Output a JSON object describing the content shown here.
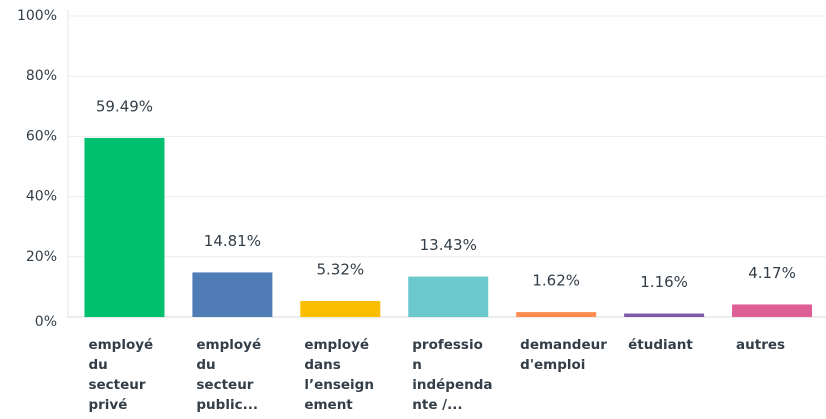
{
  "chart_data": {
    "type": "bar",
    "categories": [
      [
        "employé",
        "du",
        "secteur",
        "privé"
      ],
      [
        "employé",
        "du",
        "secteur",
        "public..."
      ],
      [
        "employé",
        "dans",
        "l’enseign",
        "ement"
      ],
      [
        "professio",
        "n",
        "indépenda",
        "nte /..."
      ],
      [
        "demandeur",
        "d'emploi"
      ],
      [
        "étudiant"
      ],
      [
        "autres"
      ]
    ],
    "values": [
      59.49,
      14.81,
      5.32,
      13.43,
      1.62,
      1.16,
      4.17
    ],
    "value_labels": [
      "59.49%",
      "14.81%",
      "5.32%",
      "13.43%",
      "1.62%",
      "1.16%",
      "4.17%"
    ],
    "colors": [
      "#00bf6f",
      "#507cb6",
      "#f9be00",
      "#6bc8cd",
      "#ff8b4f",
      "#7d5ba6",
      "#de5f96"
    ],
    "ylim": [
      0,
      100
    ],
    "yticks": [
      {
        "value": 0,
        "label": "0%"
      },
      {
        "value": 20,
        "label": "20%"
      },
      {
        "value": 40,
        "label": "40%"
      },
      {
        "value": 60,
        "label": "60%"
      },
      {
        "value": 80,
        "label": "80%"
      },
      {
        "value": 100,
        "label": "100%"
      }
    ],
    "grid": true
  }
}
